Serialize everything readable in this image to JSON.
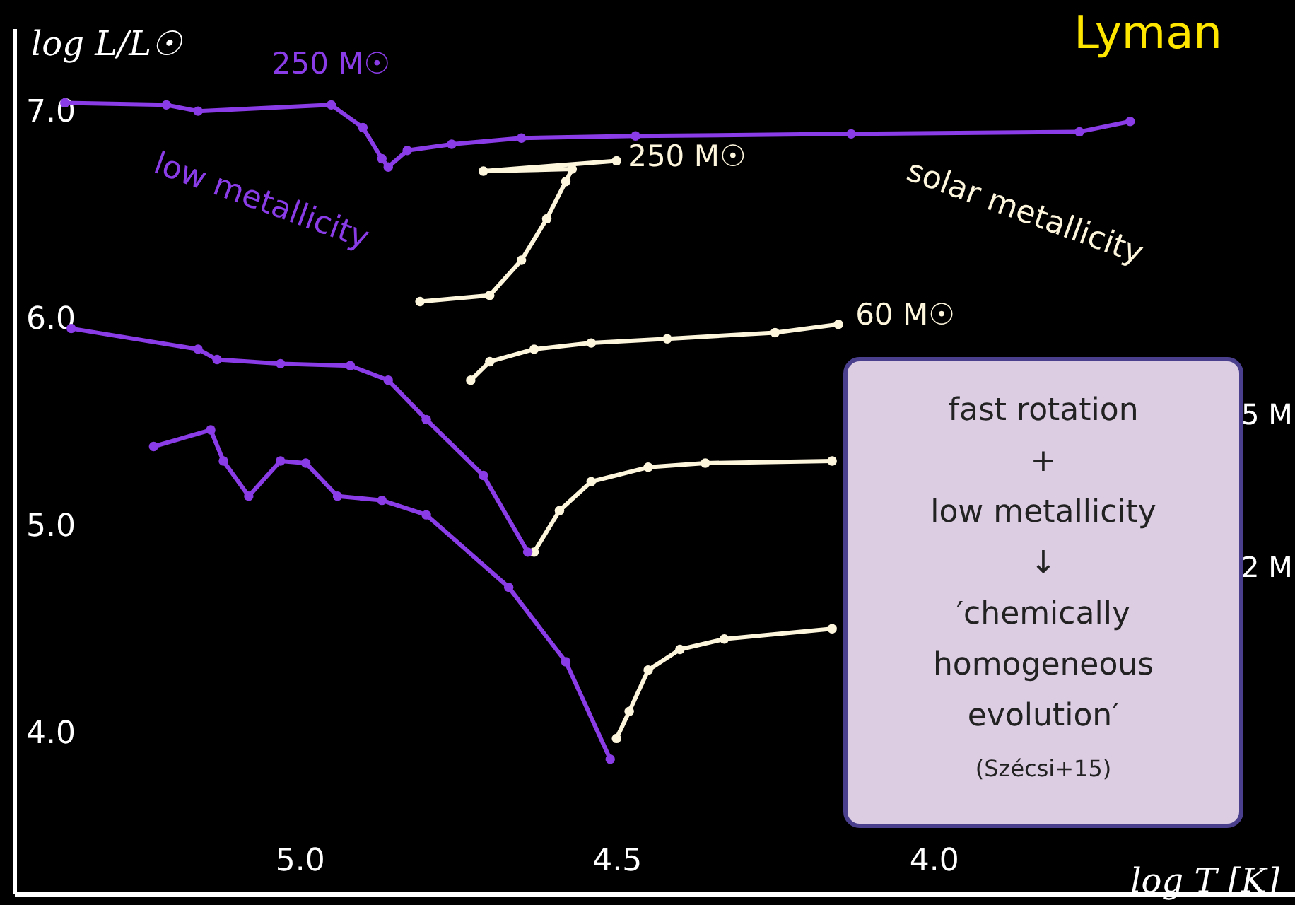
{
  "chart_data": {
    "type": "line",
    "xlabel": "log T [K]",
    "ylabel": "log L/L☉",
    "xlim": [
      5.45,
      3.43
    ],
    "ylim": [
      3.22,
      7.4
    ],
    "xticks": [
      {
        "value": 5.0,
        "label": "5.0"
      },
      {
        "value": 4.5,
        "label": "4.5"
      },
      {
        "value": 4.0,
        "label": "4.0"
      }
    ],
    "yticks": [
      {
        "value": 4.0,
        "label": "4.0"
      },
      {
        "value": 5.0,
        "label": "5.0"
      },
      {
        "value": 6.0,
        "label": "6.0"
      },
      {
        "value": 7.0,
        "label": "7.0"
      }
    ],
    "grid": false,
    "marker": "circle",
    "line_style": "solid",
    "series": [
      {
        "color": "#8a3ce6",
        "x": [
          5.37,
          5.21,
          5.16,
          4.95,
          4.9,
          4.87,
          4.86,
          4.83,
          4.76,
          4.65,
          4.47,
          4.13,
          3.77,
          3.69
        ],
        "values": [
          7.04,
          7.03,
          7.0,
          7.03,
          6.92,
          6.77,
          6.73,
          6.81,
          6.84,
          6.87,
          6.88,
          6.89,
          6.9,
          6.95
        ]
      },
      {
        "color": "#8a3ce6",
        "x": [
          5.36,
          5.16,
          5.13,
          5.03,
          4.92,
          4.86,
          4.8,
          4.71,
          4.64
        ],
        "values": [
          5.95,
          5.85,
          5.8,
          5.78,
          5.77,
          5.7,
          5.51,
          5.24,
          4.87
        ]
      },
      {
        "color": "#8a3ce6",
        "x": [
          5.23,
          5.14,
          5.12,
          5.08,
          5.03,
          4.99,
          4.94,
          4.87,
          4.8,
          4.67,
          4.58,
          4.51
        ],
        "values": [
          5.38,
          5.46,
          5.31,
          5.14,
          5.31,
          5.3,
          5.14,
          5.12,
          5.05,
          4.7,
          4.34,
          3.87
        ]
      },
      {
        "color": "#fdf5dc",
        "x": [
          4.81,
          4.7,
          4.65,
          4.61,
          4.58,
          4.57,
          4.71,
          4.5
        ],
        "values": [
          6.08,
          6.11,
          6.28,
          6.48,
          6.66,
          6.72,
          6.71,
          6.76
        ]
      },
      {
        "color": "#fdf5dc",
        "x": [
          4.73,
          4.7,
          4.63,
          4.54,
          4.42,
          4.25,
          4.15
        ],
        "values": [
          5.7,
          5.79,
          5.85,
          5.88,
          5.9,
          5.93,
          5.97
        ]
      },
      {
        "color": "#fdf5dc",
        "x": [
          4.63,
          4.59,
          4.54,
          4.45,
          4.36,
          4.16
        ],
        "values": [
          4.87,
          5.07,
          5.21,
          5.28,
          5.3,
          5.31
        ]
      },
      {
        "color": "#fdf5dc",
        "x": [
          4.5,
          4.48,
          4.45,
          4.4,
          4.33,
          4.16
        ],
        "values": [
          3.97,
          4.1,
          4.3,
          4.4,
          4.45,
          4.5
        ]
      }
    ],
    "annotations": [
      {
        "text": "250 M☉",
        "x": 4.95,
        "y": 7.03
      },
      {
        "text": "250 M☉",
        "x": 4.5,
        "y": 6.76
      },
      {
        "text": "60 M☉",
        "x": 4.15,
        "y": 5.97
      },
      "low metallicity",
      "solar metallicity",
      "5 M",
      "2 M",
      "Lyman",
      "fast rotation\n+\nlow metallicity\n↓\n′chemically\nhomogeneous\nevolution′",
      "(Szécsi+15)"
    ]
  }
}
